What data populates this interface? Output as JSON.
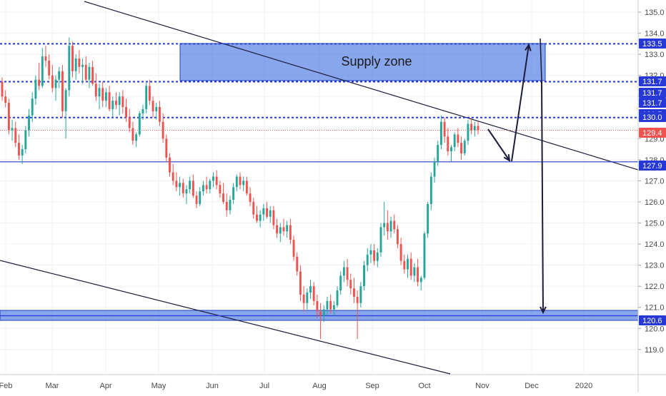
{
  "chart_data": {
    "type": "candlestick",
    "colors": {
      "up": "#26a69a",
      "down": "#ef5350",
      "level": "#2639d6",
      "zone_fill": "#3d6fe0",
      "trendline": "#1c1c3c",
      "price_line": "#ef5350",
      "price_tag": "#ef5350",
      "level_tag": "#2639d6"
    },
    "x_axis": {
      "tick_labels": [
        "Feb",
        "Mar",
        "Apr",
        "May",
        "Jun",
        "Jul",
        "Aug",
        "Sep",
        "Oct",
        "Nov",
        "Dec",
        "2020"
      ]
    },
    "y_axis": {
      "tick_labels": [
        "135.0",
        "134.0",
        "133.0",
        "132.0",
        "131.0",
        "130.0",
        "129.0",
        "128.0",
        "127.0",
        "126.0",
        "125.0",
        "124.0",
        "123.0",
        "122.0",
        "121.0",
        "120.0",
        "119.0"
      ],
      "ylim": [
        118.5,
        135.2
      ]
    },
    "level_tags": [
      "133.5",
      "131.7",
      "131.7",
      "131.7",
      "131.7",
      "130.0",
      "129.4",
      "127.9",
      "120.6"
    ],
    "levels": {
      "dotted": [
        133.5,
        131.7,
        130.0
      ],
      "solid": [
        127.9,
        120.6
      ],
      "current_price": 129.4
    },
    "annotations": {
      "supply_zone_label": "Supply zone"
    },
    "ohlc": [
      [
        131.7,
        131.9,
        130.8,
        131.0
      ],
      [
        131.0,
        131.3,
        130.5,
        130.7
      ],
      [
        130.7,
        130.9,
        129.2,
        129.4
      ],
      [
        129.4,
        129.9,
        128.9,
        129.5
      ],
      [
        129.5,
        129.8,
        128.6,
        128.8
      ],
      [
        128.8,
        129.2,
        128.0,
        128.2
      ],
      [
        128.2,
        128.7,
        127.8,
        128.5
      ],
      [
        128.5,
        129.6,
        128.3,
        129.4
      ],
      [
        129.4,
        130.4,
        129.1,
        130.1
      ],
      [
        130.1,
        131.2,
        129.8,
        130.9
      ],
      [
        130.9,
        132.0,
        130.6,
        131.8
      ],
      [
        131.8,
        132.6,
        131.3,
        131.5
      ],
      [
        131.5,
        133.3,
        131.4,
        132.9
      ],
      [
        132.9,
        133.4,
        132.4,
        132.7
      ],
      [
        132.7,
        133.0,
        131.8,
        132.0
      ],
      [
        132.0,
        132.5,
        131.2,
        131.4
      ],
      [
        131.4,
        132.0,
        130.8,
        131.8
      ],
      [
        131.8,
        132.4,
        131.4,
        132.2
      ],
      [
        132.2,
        132.5,
        130.0,
        130.3
      ],
      [
        130.3,
        131.4,
        129.0,
        131.3
      ],
      [
        131.3,
        133.8,
        131.0,
        133.4
      ],
      [
        133.4,
        133.6,
        131.9,
        132.2
      ],
      [
        132.2,
        133.0,
        131.8,
        132.8
      ],
      [
        132.8,
        133.2,
        132.1,
        132.4
      ],
      [
        132.4,
        132.8,
        131.6,
        132.5
      ],
      [
        132.5,
        132.9,
        131.7,
        131.8
      ],
      [
        131.8,
        132.6,
        131.4,
        132.4
      ],
      [
        132.4,
        132.7,
        131.5,
        131.6
      ],
      [
        131.6,
        132.1,
        130.8,
        131.0
      ],
      [
        131.0,
        131.6,
        130.4,
        131.4
      ],
      [
        131.4,
        131.7,
        130.5,
        130.8
      ],
      [
        130.8,
        131.4,
        130.5,
        131.2
      ],
      [
        131.2,
        131.5,
        130.3,
        130.4
      ],
      [
        130.4,
        131.0,
        130.0,
        130.8
      ],
      [
        130.8,
        131.2,
        130.4,
        130.6
      ],
      [
        130.6,
        131.2,
        130.1,
        131.0
      ],
      [
        131.0,
        131.3,
        130.2,
        130.5
      ],
      [
        130.5,
        130.9,
        129.8,
        130.0
      ],
      [
        130.0,
        130.4,
        129.3,
        129.5
      ],
      [
        129.5,
        129.8,
        128.7,
        128.9
      ],
      [
        128.9,
        129.3,
        128.6,
        129.2
      ],
      [
        129.2,
        130.3,
        129.1,
        130.2
      ],
      [
        130.2,
        130.6,
        129.9,
        130.4
      ],
      [
        130.4,
        131.7,
        130.2,
        131.5
      ],
      [
        131.5,
        131.8,
        130.6,
        130.8
      ],
      [
        130.8,
        131.0,
        130.0,
        130.3
      ],
      [
        130.3,
        130.7,
        129.9,
        130.5
      ],
      [
        130.5,
        130.8,
        129.6,
        129.8
      ],
      [
        129.8,
        130.2,
        128.8,
        129.0
      ],
      [
        129.0,
        129.2,
        127.9,
        128.1
      ],
      [
        128.1,
        128.3,
        127.2,
        127.4
      ],
      [
        127.4,
        127.8,
        126.8,
        127.0
      ],
      [
        127.0,
        127.4,
        126.5,
        126.7
      ],
      [
        126.7,
        127.2,
        126.3,
        126.9
      ],
      [
        126.9,
        127.1,
        126.2,
        126.4
      ],
      [
        126.4,
        126.8,
        125.9,
        126.6
      ],
      [
        126.6,
        127.2,
        126.4,
        127.0
      ],
      [
        127.0,
        127.3,
        126.2,
        126.3
      ],
      [
        126.3,
        126.5,
        125.7,
        125.9
      ],
      [
        125.9,
        126.7,
        125.8,
        126.5
      ],
      [
        126.5,
        127.0,
        126.3,
        126.8
      ],
      [
        126.8,
        127.2,
        126.4,
        126.6
      ],
      [
        126.6,
        127.1,
        126.4,
        127.0
      ],
      [
        127.0,
        127.4,
        126.7,
        127.2
      ],
      [
        127.2,
        127.5,
        126.6,
        126.8
      ],
      [
        126.8,
        127.0,
        126.2,
        126.4
      ],
      [
        126.4,
        126.9,
        125.9,
        126.0
      ],
      [
        126.0,
        126.4,
        125.3,
        125.6
      ],
      [
        125.6,
        126.3,
        125.4,
        126.1
      ],
      [
        126.1,
        126.9,
        125.9,
        126.7
      ],
      [
        126.7,
        127.3,
        126.5,
        127.2
      ],
      [
        127.2,
        127.4,
        126.6,
        126.8
      ],
      [
        126.8,
        127.2,
        126.5,
        127.0
      ],
      [
        127.0,
        127.2,
        126.3,
        126.4
      ],
      [
        126.4,
        126.7,
        125.8,
        126.0
      ],
      [
        126.0,
        126.2,
        125.2,
        125.4
      ],
      [
        125.4,
        125.8,
        125.0,
        125.1
      ],
      [
        125.1,
        125.6,
        124.8,
        125.4
      ],
      [
        125.4,
        125.9,
        125.1,
        125.7
      ],
      [
        125.7,
        126.0,
        125.2,
        125.3
      ],
      [
        125.3,
        125.8,
        125.0,
        125.6
      ],
      [
        125.6,
        125.8,
        124.7,
        124.9
      ],
      [
        124.9,
        125.2,
        124.3,
        124.5
      ],
      [
        124.5,
        125.0,
        124.1,
        124.8
      ],
      [
        124.8,
        125.2,
        124.4,
        124.6
      ],
      [
        124.6,
        125.1,
        124.3,
        124.9
      ],
      [
        124.9,
        125.2,
        124.0,
        124.2
      ],
      [
        124.2,
        124.4,
        123.2,
        123.4
      ],
      [
        123.4,
        123.6,
        122.5,
        122.7
      ],
      [
        122.7,
        123.0,
        121.3,
        121.6
      ],
      [
        121.6,
        122.0,
        120.8,
        121.2
      ],
      [
        121.2,
        121.9,
        120.9,
        121.7
      ],
      [
        121.7,
        122.3,
        121.4,
        122.0
      ],
      [
        122.0,
        122.2,
        121.1,
        121.3
      ],
      [
        121.3,
        121.6,
        120.5,
        120.8
      ],
      [
        120.8,
        121.2,
        119.5,
        120.6
      ],
      [
        120.6,
        121.1,
        120.3,
        120.9
      ],
      [
        120.9,
        121.5,
        120.6,
        121.3
      ],
      [
        121.3,
        121.6,
        120.7,
        120.9
      ],
      [
        120.9,
        121.3,
        120.6,
        121.1
      ],
      [
        121.1,
        122.0,
        121.0,
        121.8
      ],
      [
        121.8,
        122.7,
        121.6,
        122.5
      ],
      [
        122.5,
        123.2,
        122.2,
        122.9
      ],
      [
        122.9,
        123.3,
        122.0,
        122.3
      ],
      [
        122.3,
        122.6,
        121.6,
        121.9
      ],
      [
        121.9,
        122.4,
        121.2,
        121.5
      ],
      [
        121.5,
        121.8,
        119.5,
        121.2
      ],
      [
        121.2,
        122.2,
        121.0,
        122.0
      ],
      [
        122.0,
        123.2,
        121.8,
        123.0
      ],
      [
        123.0,
        123.8,
        122.7,
        123.5
      ],
      [
        123.5,
        124.0,
        123.1,
        123.7
      ],
      [
        123.7,
        124.0,
        123.0,
        123.2
      ],
      [
        123.2,
        123.8,
        122.9,
        123.6
      ],
      [
        123.6,
        125.0,
        123.4,
        124.8
      ],
      [
        124.8,
        126.0,
        124.4,
        125.0
      ],
      [
        125.0,
        125.6,
        124.2,
        124.6
      ],
      [
        124.6,
        125.3,
        124.3,
        125.1
      ],
      [
        125.1,
        125.4,
        124.5,
        124.7
      ],
      [
        124.7,
        124.9,
        123.8,
        124.0
      ],
      [
        124.0,
        124.3,
        123.0,
        123.2
      ],
      [
        123.2,
        123.5,
        122.6,
        122.8
      ],
      [
        122.8,
        123.5,
        122.4,
        123.3
      ],
      [
        123.3,
        123.6,
        122.3,
        122.5
      ],
      [
        122.5,
        123.1,
        122.2,
        122.9
      ],
      [
        122.9,
        123.3,
        122.0,
        122.2
      ],
      [
        122.2,
        122.5,
        121.8,
        122.4
      ],
      [
        122.4,
        124.6,
        122.3,
        124.5
      ],
      [
        124.5,
        126.0,
        124.3,
        125.9
      ],
      [
        125.9,
        127.4,
        125.6,
        127.2
      ],
      [
        127.2,
        128.1,
        126.9,
        127.9
      ],
      [
        127.9,
        128.9,
        127.7,
        128.7
      ],
      [
        128.7,
        130.1,
        128.5,
        129.8
      ],
      [
        129.8,
        130.0,
        128.8,
        129.1
      ],
      [
        129.1,
        129.5,
        128.2,
        128.4
      ],
      [
        128.4,
        128.7,
        127.9,
        128.6
      ],
      [
        128.6,
        129.3,
        128.4,
        129.2
      ],
      [
        129.2,
        129.5,
        128.6,
        128.8
      ],
      [
        128.8,
        129.1,
        128.0,
        128.3
      ],
      [
        128.3,
        129.0,
        128.2,
        128.9
      ],
      [
        128.9,
        129.9,
        128.7,
        129.7
      ],
      [
        129.7,
        130.0,
        129.2,
        129.4
      ],
      [
        129.4,
        129.8,
        129.1,
        129.6
      ],
      [
        129.6,
        129.8,
        129.2,
        129.4
      ]
    ]
  }
}
